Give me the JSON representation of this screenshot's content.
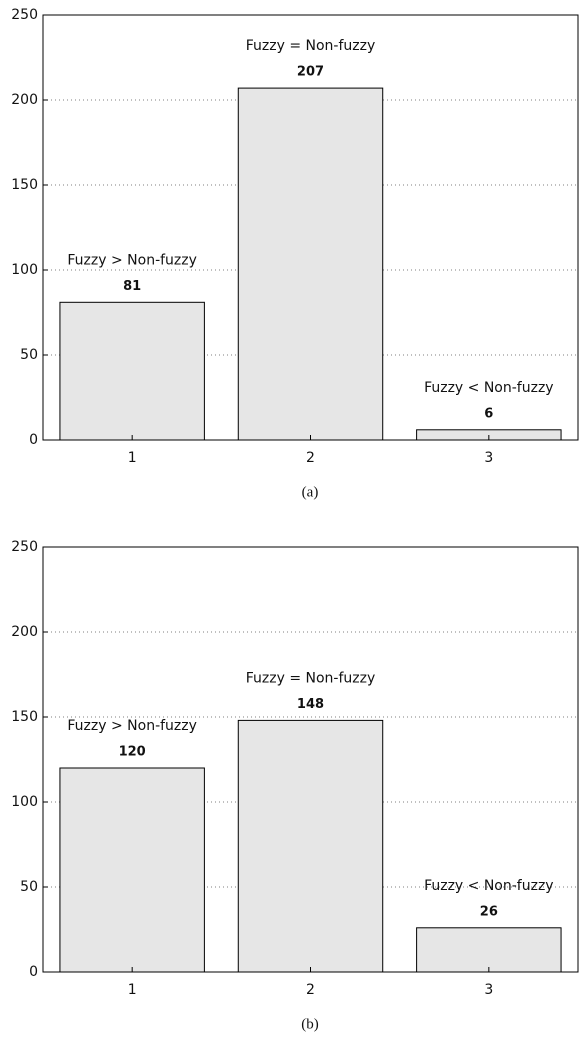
{
  "chart_data": [
    {
      "type": "bar",
      "categories": [
        "1",
        "2",
        "3"
      ],
      "values": [
        81,
        207,
        6
      ],
      "annotations": [
        "Fuzzy > Non-fuzzy",
        "Fuzzy = Non-fuzzy",
        "Fuzzy < Non-fuzzy"
      ],
      "ylim": [
        0,
        250
      ],
      "yticks": [
        0,
        50,
        100,
        150,
        200,
        250
      ],
      "grid": true,
      "color": "#e6e6e6",
      "caption": "(a)"
    },
    {
      "type": "bar",
      "categories": [
        "1",
        "2",
        "3"
      ],
      "values": [
        120,
        148,
        26
      ],
      "annotations": [
        "Fuzzy > Non-fuzzy",
        "Fuzzy = Non-fuzzy",
        "Fuzzy < Non-fuzzy"
      ],
      "ylim": [
        0,
        250
      ],
      "yticks": [
        0,
        50,
        100,
        150,
        200,
        250
      ],
      "grid": true,
      "color": "#e6e6e6",
      "caption": "(b)"
    }
  ]
}
